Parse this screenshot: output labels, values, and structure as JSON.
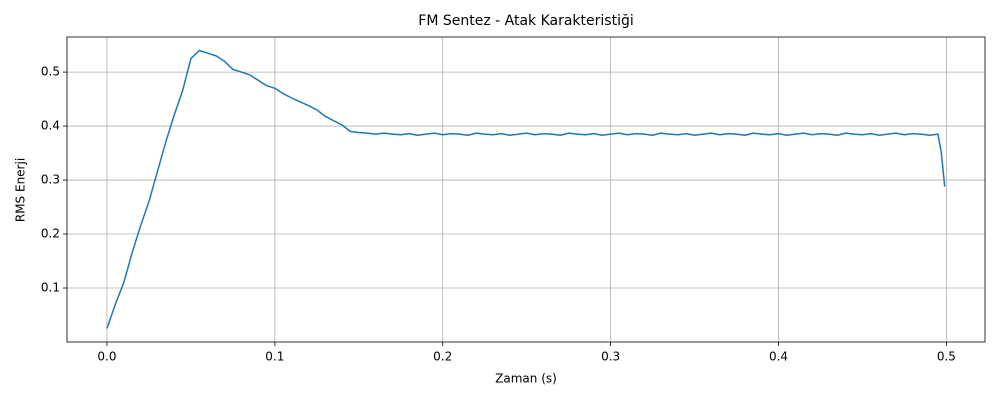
{
  "chart_data": {
    "type": "line",
    "title": "FM Sentez - Atak Karakteristiği",
    "xlabel": "Zaman (s)",
    "ylabel": "RMS Enerji",
    "x": [
      0,
      0.005,
      0.01,
      0.015,
      0.02,
      0.025,
      0.03,
      0.035,
      0.04,
      0.045,
      0.05,
      0.055,
      0.06,
      0.065,
      0.07,
      0.075,
      0.08,
      0.085,
      0.09,
      0.095,
      0.1,
      0.105,
      0.11,
      0.115,
      0.12,
      0.125,
      0.13,
      0.135,
      0.14,
      0.145,
      0.15,
      0.155,
      0.16,
      0.165,
      0.17,
      0.175,
      0.18,
      0.185,
      0.19,
      0.195,
      0.2,
      0.205,
      0.21,
      0.215,
      0.22,
      0.225,
      0.23,
      0.235,
      0.24,
      0.245,
      0.25,
      0.255,
      0.26,
      0.265,
      0.27,
      0.275,
      0.28,
      0.285,
      0.29,
      0.295,
      0.3,
      0.305,
      0.31,
      0.315,
      0.32,
      0.325,
      0.33,
      0.335,
      0.34,
      0.345,
      0.35,
      0.355,
      0.36,
      0.365,
      0.37,
      0.375,
      0.38,
      0.385,
      0.39,
      0.395,
      0.4,
      0.405,
      0.41,
      0.415,
      0.42,
      0.425,
      0.43,
      0.435,
      0.44,
      0.445,
      0.45,
      0.455,
      0.46,
      0.465,
      0.47,
      0.475,
      0.48,
      0.485,
      0.49,
      0.495,
      0.497,
      0.499
    ],
    "series": [
      {
        "name": "RMS Enerji",
        "color": "#1f77b4",
        "values": [
          0.025,
          0.07,
          0.11,
          0.165,
          0.215,
          0.26,
          0.315,
          0.37,
          0.42,
          0.465,
          0.525,
          0.54,
          0.535,
          0.53,
          0.52,
          0.505,
          0.5,
          0.495,
          0.485,
          0.475,
          0.47,
          0.46,
          0.452,
          0.445,
          0.438,
          0.43,
          0.418,
          0.41,
          0.402,
          0.39,
          0.388,
          0.387,
          0.385,
          0.387,
          0.385,
          0.384,
          0.386,
          0.383,
          0.385,
          0.387,
          0.384,
          0.386,
          0.385,
          0.383,
          0.387,
          0.385,
          0.384,
          0.386,
          0.383,
          0.385,
          0.387,
          0.384,
          0.386,
          0.385,
          0.383,
          0.387,
          0.385,
          0.384,
          0.386,
          0.383,
          0.385,
          0.387,
          0.384,
          0.386,
          0.385,
          0.383,
          0.387,
          0.385,
          0.384,
          0.386,
          0.383,
          0.385,
          0.387,
          0.384,
          0.386,
          0.385,
          0.383,
          0.387,
          0.385,
          0.384,
          0.386,
          0.383,
          0.385,
          0.387,
          0.384,
          0.386,
          0.385,
          0.383,
          0.387,
          0.385,
          0.384,
          0.386,
          0.383,
          0.385,
          0.387,
          0.384,
          0.386,
          0.385,
          0.383,
          0.385,
          0.35,
          0.288
        ]
      }
    ],
    "xlim": [
      -0.0238,
      0.523
    ],
    "ylim": [
      0.0,
      0.565
    ],
    "xticks": [
      {
        "value": 0,
        "label": "0.0"
      },
      0.1,
      0.2,
      0.3,
      0.4,
      0.5
    ],
    "yticks": [
      0.1,
      0.2,
      0.3,
      0.4,
      0.5
    ],
    "grid": true
  }
}
